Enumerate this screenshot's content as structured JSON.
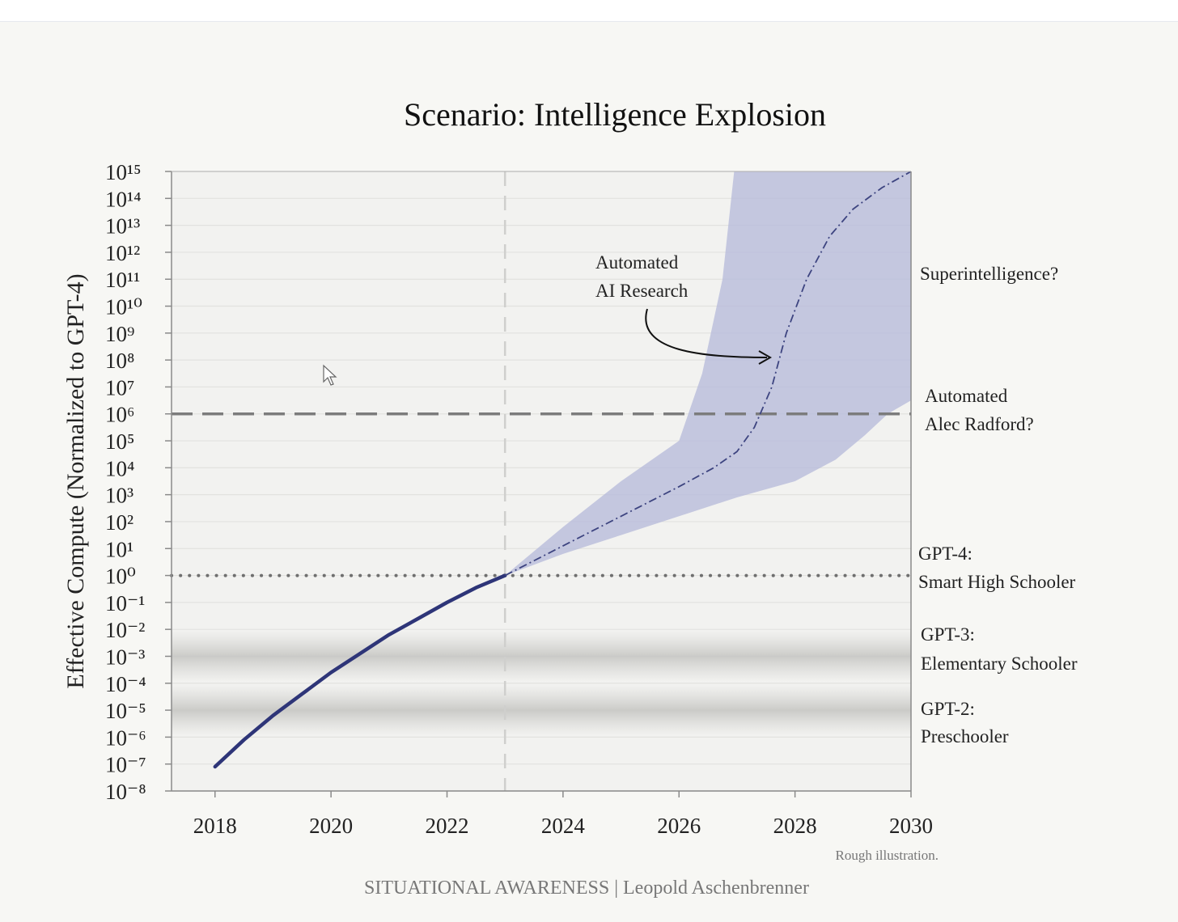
{
  "chart_data": {
    "type": "line",
    "title": "Scenario: Intelligence Explosion",
    "ylabel": "Effective Compute (Normalized to GPT-4)",
    "xlabel": "",
    "xlim": [
      2017.25,
      2030
    ],
    "x_ticks": [
      "2018",
      "2020",
      "2022",
      "2024",
      "2026",
      "2028",
      "2030"
    ],
    "y_scale": "log",
    "ylim_exponent": [
      -8,
      15
    ],
    "y_tick_exponents": [
      15,
      14,
      13,
      12,
      11,
      10,
      9,
      8,
      7,
      6,
      5,
      4,
      3,
      2,
      1,
      0,
      -1,
      -2,
      -3,
      -4,
      -5,
      -6,
      -7,
      -8
    ],
    "grid": true,
    "series": [
      {
        "style": "solid",
        "color": "#2e3578",
        "points": [
          [
            2018,
            -7.1
          ],
          [
            2018.5,
            -6.1
          ],
          [
            2019,
            -5.2
          ],
          [
            2019.5,
            -4.4
          ],
          [
            2020,
            -3.6
          ],
          [
            2020.5,
            -2.9
          ],
          [
            2021,
            -2.2
          ],
          [
            2021.5,
            -1.6
          ],
          [
            2022,
            -1.0
          ],
          [
            2022.5,
            -0.45
          ],
          [
            2023,
            0
          ]
        ]
      },
      {
        "style": "dash-dot",
        "color": "#3d4480",
        "points": [
          [
            2023,
            0
          ],
          [
            2024,
            1.1
          ],
          [
            2025,
            2.2
          ],
          [
            2026,
            3.3
          ],
          [
            2026.6,
            4.0
          ],
          [
            2027,
            4.6
          ],
          [
            2027.3,
            5.5
          ],
          [
            2027.6,
            7.0
          ],
          [
            2027.85,
            9.0
          ],
          [
            2028.2,
            11.0
          ],
          [
            2028.6,
            12.6
          ],
          [
            2029,
            13.6
          ],
          [
            2029.5,
            14.4
          ],
          [
            2030,
            15.0
          ]
        ]
      }
    ],
    "uncertainty_band": {
      "color": "#b8bcdb",
      "upper": [
        [
          2023,
          0
        ],
        [
          2024,
          1.8
        ],
        [
          2025,
          3.5
        ],
        [
          2026,
          5.0
        ],
        [
          2026.4,
          7.5
        ],
        [
          2026.75,
          11.0
        ],
        [
          2026.95,
          15.0
        ]
      ],
      "lower": [
        [
          2023,
          0
        ],
        [
          2024,
          0.8
        ],
        [
          2025,
          1.5
        ],
        [
          2026,
          2.2
        ],
        [
          2027,
          2.9
        ],
        [
          2028,
          3.5
        ],
        [
          2028.7,
          4.3
        ],
        [
          2029.2,
          5.2
        ],
        [
          2029.6,
          6.0
        ],
        [
          2030,
          6.5
        ]
      ]
    },
    "reference_lines": [
      {
        "exponent": 6,
        "style": "dashed",
        "label_lines": [
          "Automated",
          "Alec Radford?"
        ]
      },
      {
        "exponent": 0,
        "style": "dotted",
        "label_lines": [
          "GPT-4:",
          "Smart High Schooler"
        ]
      }
    ],
    "bands": [
      {
        "exponent": -3,
        "label_lines": [
          "GPT-3:",
          "Elementary Schooler"
        ]
      },
      {
        "exponent": -5,
        "label_lines": [
          "GPT-2:",
          "Preschooler"
        ]
      }
    ],
    "top_label": "Superintelligence?",
    "vertical_marker_x": 2023,
    "annotation": {
      "lines": [
        "Automated",
        "AI Research"
      ],
      "arrow_to": [
        2027.4,
        8.0
      ]
    },
    "note": "Rough illustration.",
    "footer": "SITUATIONAL AWARENESS | Leopold Aschenbrenner"
  }
}
